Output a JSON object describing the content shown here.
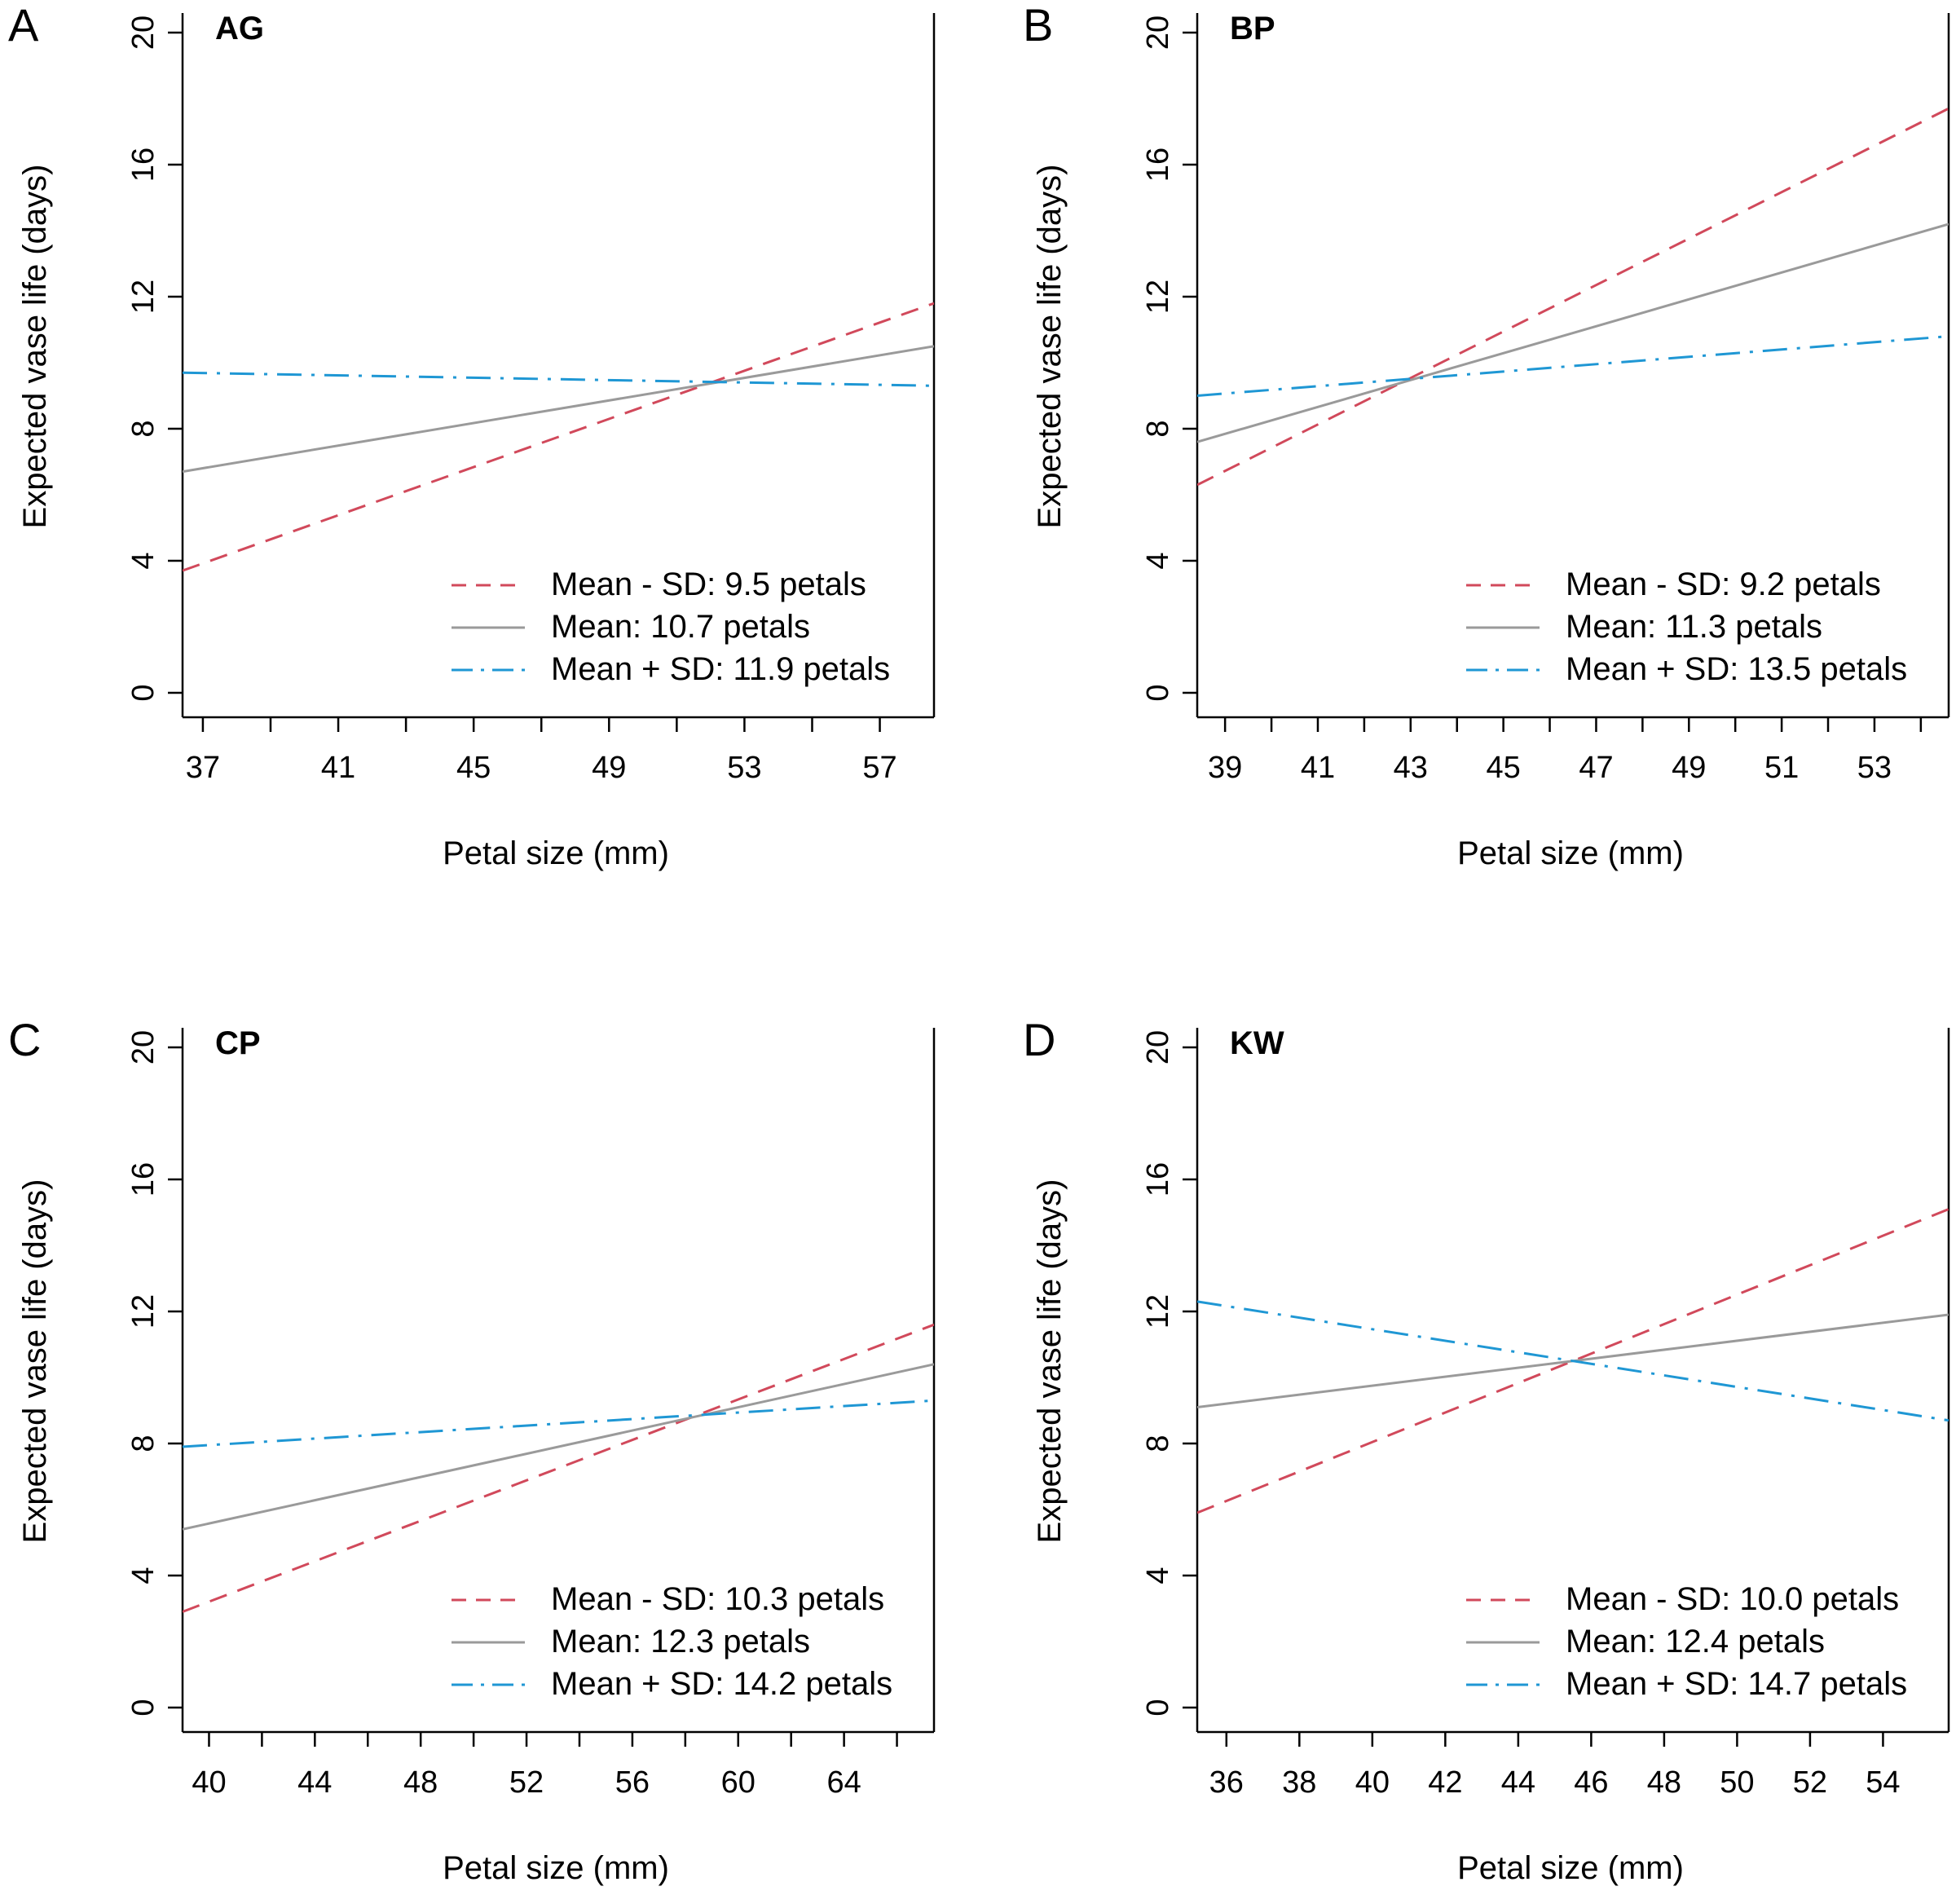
{
  "figure": {
    "colors": {
      "mean_minus_sd": "#d1495b",
      "mean": "#9a9a9a",
      "mean_plus_sd": "#1f97d4",
      "axis": "#000000"
    }
  },
  "chart_data": [
    {
      "type": "line",
      "panel": "A",
      "title": "AG",
      "xlabel": "Petal size (mm)",
      "ylabel": "Expected vase life (days)",
      "xlim": [
        36.4,
        58.6
      ],
      "ylim": [
        0,
        20
      ],
      "xticks": [
        37,
        39,
        41,
        43,
        45,
        47,
        49,
        51,
        53,
        55,
        57
      ],
      "xtick_labels": [
        "37",
        "",
        "41",
        "",
        "45",
        "",
        "49",
        "",
        "53",
        "",
        "57"
      ],
      "yticks": [
        0,
        4,
        8,
        12,
        16,
        20
      ],
      "ytick_labels": [
        "0",
        "4",
        "8",
        "12",
        "16",
        "20"
      ],
      "legend_position": "bottom-right",
      "series": [
        {
          "key": "mean_minus_sd",
          "name": "Mean - SD: 9.5 petals",
          "style": "dashed",
          "x": [
            36.4,
            58.6
          ],
          "y": [
            3.7,
            11.8
          ]
        },
        {
          "key": "mean",
          "name": "Mean: 10.7 petals",
          "style": "solid",
          "x": [
            36.4,
            58.6
          ],
          "y": [
            6.7,
            10.5
          ]
        },
        {
          "key": "mean_plus_sd",
          "name": "Mean + SD: 11.9 petals",
          "style": "dashdot",
          "x": [
            36.4,
            58.6
          ],
          "y": [
            9.7,
            9.3
          ]
        }
      ]
    },
    {
      "type": "line",
      "panel": "B",
      "title": "BP",
      "xlabel": "Petal size (mm)",
      "ylabel": "Expected vase life (days)",
      "xlim": [
        38.4,
        54.6
      ],
      "ylim": [
        0,
        20
      ],
      "xticks": [
        39,
        40,
        41,
        42,
        43,
        44,
        45,
        46,
        47,
        48,
        49,
        50,
        51,
        52,
        53,
        54
      ],
      "xtick_labels": [
        "39",
        "",
        "41",
        "",
        "43",
        "",
        "45",
        "",
        "47",
        "",
        "49",
        "",
        "51",
        "",
        "53",
        ""
      ],
      "yticks": [
        0,
        4,
        8,
        12,
        16,
        20
      ],
      "ytick_labels": [
        "0",
        "4",
        "8",
        "12",
        "16",
        "20"
      ],
      "legend_position": "bottom-right",
      "series": [
        {
          "key": "mean_minus_sd",
          "name": "Mean - SD: 9.2 petals",
          "style": "dashed",
          "x": [
            38.4,
            54.6
          ],
          "y": [
            6.3,
            17.7
          ]
        },
        {
          "key": "mean",
          "name": "Mean: 11.3 petals",
          "style": "solid",
          "x": [
            38.4,
            54.6
          ],
          "y": [
            7.6,
            14.2
          ]
        },
        {
          "key": "mean_plus_sd",
          "name": "Mean + SD: 13.5 petals",
          "style": "dashdot",
          "x": [
            38.4,
            54.6
          ],
          "y": [
            9.0,
            10.8
          ]
        }
      ]
    },
    {
      "type": "line",
      "panel": "C",
      "title": "CP",
      "xlabel": "Petal size (mm)",
      "ylabel": "Expected vase life (days)",
      "xlim": [
        39.0,
        67.4
      ],
      "ylim": [
        0,
        20
      ],
      "xticks": [
        40,
        42,
        44,
        46,
        48,
        50,
        52,
        54,
        56,
        58,
        60,
        62,
        64,
        66
      ],
      "xtick_labels": [
        "40",
        "",
        "44",
        "",
        "48",
        "",
        "52",
        "",
        "56",
        "",
        "60",
        "",
        "64",
        ""
      ],
      "yticks": [
        0,
        4,
        8,
        12,
        16,
        20
      ],
      "ytick_labels": [
        "0",
        "4",
        "8",
        "12",
        "16",
        "20"
      ],
      "legend_position": "bottom-right",
      "series": [
        {
          "key": "mean_minus_sd",
          "name": "Mean - SD: 10.3 petals",
          "style": "dashed",
          "x": [
            39.0,
            67.4
          ],
          "y": [
            2.9,
            11.6
          ]
        },
        {
          "key": "mean",
          "name": "Mean: 12.3 petals",
          "style": "solid",
          "x": [
            39.0,
            67.4
          ],
          "y": [
            5.4,
            10.4
          ]
        },
        {
          "key": "mean_plus_sd",
          "name": "Mean + SD: 14.2 petals",
          "style": "dashdot",
          "x": [
            39.0,
            67.4
          ],
          "y": [
            7.9,
            9.3
          ]
        }
      ]
    },
    {
      "type": "line",
      "panel": "D",
      "title": "KW",
      "xlabel": "Petal size (mm)",
      "ylabel": "Expected vase life (days)",
      "xlim": [
        35.2,
        55.8
      ],
      "ylim": [
        0,
        20
      ],
      "xticks": [
        36,
        38,
        40,
        42,
        44,
        46,
        48,
        50,
        52,
        54
      ],
      "xtick_labels": [
        "36",
        "38",
        "40",
        "42",
        "44",
        "46",
        "48",
        "50",
        "52",
        "54"
      ],
      "yticks": [
        0,
        4,
        8,
        12,
        16,
        20
      ],
      "ytick_labels": [
        "0",
        "4",
        "8",
        "12",
        "16",
        "20"
      ],
      "legend_position": "bottom-right",
      "series": [
        {
          "key": "mean_minus_sd",
          "name": "Mean - SD: 10.0 petals",
          "style": "dashed",
          "x": [
            35.2,
            55.8
          ],
          "y": [
            5.9,
            15.1
          ]
        },
        {
          "key": "mean",
          "name": "Mean: 12.4 petals",
          "style": "solid",
          "x": [
            35.2,
            55.8
          ],
          "y": [
            9.1,
            11.9
          ]
        },
        {
          "key": "mean_plus_sd",
          "name": "Mean + SD: 14.7 petals",
          "style": "dashdot",
          "x": [
            35.2,
            55.8
          ],
          "y": [
            12.3,
            8.7
          ]
        }
      ]
    }
  ]
}
